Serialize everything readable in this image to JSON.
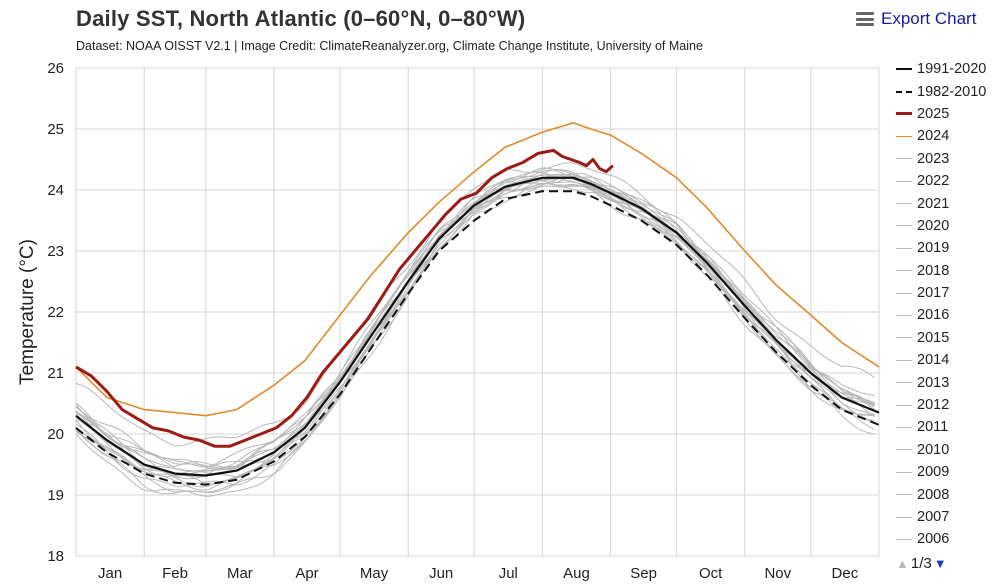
{
  "header": {
    "title": "Daily SST, North Atlantic (0–60°N, 0–80°W)",
    "subtitle": "Dataset: NOAA OISST V2.1 | Image Credit: ClimateReanalyzer.org, Climate Change Institute, University of Maine",
    "export_label": "Export Chart",
    "export_icon": "hamburger-menu-icon"
  },
  "pager": {
    "label": "1/3",
    "up_icon": "triangle-up-icon",
    "down_icon": "triangle-down-icon"
  },
  "colors": {
    "mean_1991_2020": "#111111",
    "mean_1982_2010": "#111111",
    "y2025": "#9b1c14",
    "y2024": "#e08a2c",
    "other_years": "#b8b8b8",
    "grid": "#d6d6d6"
  },
  "chart_data": {
    "type": "line",
    "title": "Daily SST, North Atlantic (0–60°N, 0–80°W)",
    "ylabel": "Temperature (°C)",
    "xlabel": "",
    "ylim": [
      18,
      26
    ],
    "yticks": [
      18,
      19,
      20,
      21,
      22,
      23,
      24,
      25,
      26
    ],
    "xlim": [
      1,
      366
    ],
    "month_labels": [
      "Jan",
      "Feb",
      "Mar",
      "Apr",
      "May",
      "Jun",
      "Jul",
      "Aug",
      "Sep",
      "Oct",
      "Nov",
      "Dec"
    ],
    "grid": true,
    "legend_position": "right",
    "series": [
      {
        "name": "1991-2020",
        "style": "solid",
        "width": 2.2,
        "color": "#111111",
        "x": [
          1,
          15,
          32,
          46,
          60,
          74,
          91,
          105,
          121,
          135,
          152,
          166,
          182,
          196,
          213,
          227,
          235,
          244,
          258,
          274,
          288,
          305,
          319,
          335,
          349,
          366
        ],
        "y": [
          20.3,
          19.9,
          19.5,
          19.35,
          19.32,
          19.4,
          19.7,
          20.1,
          20.85,
          21.6,
          22.5,
          23.2,
          23.75,
          24.05,
          24.2,
          24.2,
          24.1,
          23.95,
          23.7,
          23.3,
          22.8,
          22.1,
          21.55,
          21.0,
          20.6,
          20.35
        ]
      },
      {
        "name": "1982-2010",
        "style": "dashed",
        "width": 2.0,
        "color": "#111111",
        "x": [
          1,
          15,
          32,
          46,
          60,
          74,
          91,
          105,
          121,
          135,
          152,
          166,
          182,
          196,
          213,
          227,
          235,
          244,
          258,
          274,
          288,
          305,
          319,
          335,
          349,
          366
        ],
        "y": [
          20.1,
          19.7,
          19.35,
          19.2,
          19.17,
          19.25,
          19.55,
          19.95,
          20.65,
          21.4,
          22.3,
          23.0,
          23.5,
          23.85,
          23.98,
          23.98,
          23.9,
          23.75,
          23.5,
          23.1,
          22.6,
          21.9,
          21.35,
          20.8,
          20.4,
          20.15
        ]
      },
      {
        "name": "2025",
        "style": "solid",
        "width": 3,
        "color": "#9b1c14",
        "x": [
          1,
          8,
          15,
          22,
          29,
          36,
          43,
          50,
          57,
          64,
          71,
          78,
          85,
          92,
          99,
          106,
          113,
          120,
          127,
          134,
          141,
          148,
          155,
          162,
          169,
          176,
          183,
          190,
          197,
          204,
          211,
          218,
          222,
          226,
          230,
          233,
          236,
          239,
          242,
          245
        ],
        "y": [
          21.1,
          20.95,
          20.7,
          20.4,
          20.25,
          20.1,
          20.05,
          19.95,
          19.9,
          19.8,
          19.8,
          19.9,
          20.0,
          20.1,
          20.3,
          20.6,
          21.0,
          21.3,
          21.6,
          21.9,
          22.3,
          22.7,
          23.0,
          23.3,
          23.6,
          23.85,
          23.95,
          24.2,
          24.35,
          24.45,
          24.6,
          24.65,
          24.55,
          24.5,
          24.45,
          24.4,
          24.5,
          24.35,
          24.3,
          24.4
        ]
      },
      {
        "name": "2024",
        "style": "solid",
        "width": 1.6,
        "color": "#e08a2c",
        "x": [
          1,
          15,
          32,
          46,
          60,
          74,
          91,
          105,
          121,
          135,
          152,
          166,
          182,
          196,
          213,
          227,
          235,
          244,
          258,
          274,
          288,
          305,
          319,
          335,
          349,
          366
        ],
        "y": [
          21.1,
          20.6,
          20.4,
          20.35,
          20.3,
          20.4,
          20.8,
          21.2,
          21.95,
          22.6,
          23.3,
          23.8,
          24.3,
          24.7,
          24.95,
          25.1,
          25.0,
          24.9,
          24.6,
          24.2,
          23.7,
          23.0,
          22.45,
          21.95,
          21.5,
          21.1
        ]
      },
      {
        "name": "2023",
        "offset": 0.55,
        "color": "#b8b8b8"
      },
      {
        "name": "2022",
        "offset": 0.12,
        "color": "#b8b8b8"
      },
      {
        "name": "2021",
        "offset": 0.18,
        "color": "#b8b8b8"
      },
      {
        "name": "2020",
        "offset": 0.22,
        "color": "#b8b8b8"
      },
      {
        "name": "2019",
        "offset": 0.08,
        "color": "#b8b8b8"
      },
      {
        "name": "2018",
        "offset": -0.05,
        "color": "#b8b8b8"
      },
      {
        "name": "2017",
        "offset": 0.1,
        "color": "#b8b8b8"
      },
      {
        "name": "2016",
        "offset": 0.05,
        "color": "#b8b8b8"
      },
      {
        "name": "2015",
        "offset": -0.02,
        "color": "#b8b8b8"
      },
      {
        "name": "2014",
        "offset": -0.1,
        "color": "#b8b8b8"
      },
      {
        "name": "2013",
        "offset": -0.15,
        "color": "#b8b8b8"
      },
      {
        "name": "2012",
        "offset": 0.0,
        "color": "#b8b8b8"
      },
      {
        "name": "2011",
        "offset": -0.2,
        "color": "#b8b8b8"
      },
      {
        "name": "2010",
        "offset": 0.15,
        "color": "#b8b8b8"
      },
      {
        "name": "2009",
        "offset": -0.25,
        "color": "#b8b8b8"
      },
      {
        "name": "2008",
        "offset": -0.3,
        "color": "#b8b8b8"
      },
      {
        "name": "2007",
        "offset": -0.35,
        "color": "#b8b8b8"
      },
      {
        "name": "2006",
        "offset": -0.12,
        "color": "#b8b8b8"
      }
    ]
  }
}
